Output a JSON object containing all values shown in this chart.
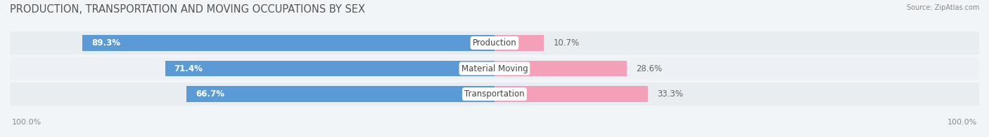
{
  "title": "PRODUCTION, TRANSPORTATION AND MOVING OCCUPATIONS BY SEX",
  "source_text": "Source: ZipAtlas.com",
  "categories": [
    "Transportation",
    "Material Moving",
    "Production"
  ],
  "male_values": [
    66.7,
    71.4,
    89.3
  ],
  "female_values": [
    33.3,
    28.6,
    10.7
  ],
  "male_color": "#5b9bd5",
  "female_color": "#f4a0b8",
  "row_bg_colors": [
    "#e8edf2",
    "#edf1f5",
    "#e8edf2"
  ],
  "gap_color": "#f2f5f8",
  "title_fontsize": 10.5,
  "bar_label_fontsize": 8.5,
  "cat_label_fontsize": 8.5,
  "axis_label_fontsize": 8,
  "legend_fontsize": 9,
  "x_left_label": "100.0%",
  "x_right_label": "100.0%",
  "bg_color": "#f2f5f8"
}
